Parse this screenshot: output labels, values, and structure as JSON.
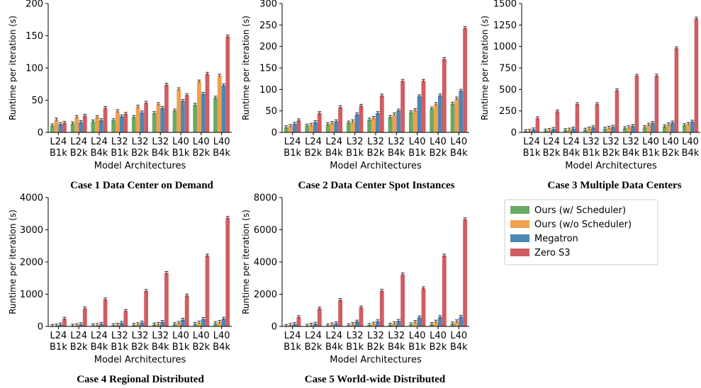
{
  "legend": {
    "placement": "right-of-bottom-row",
    "entries": [
      {
        "label": "Ours (w/ Scheduler)",
        "color": "#6aaa64"
      },
      {
        "label": "Ours (w/o Scheduler)",
        "color": "#f0a04c"
      },
      {
        "label": "Megatron",
        "color": "#4e86b5"
      },
      {
        "label": "Zero S3",
        "color": "#d05d63"
      }
    ]
  },
  "chart_data": [
    {
      "type": "bar",
      "caption": "Case 1 Data Center on Demand",
      "xlabel": "Model Architectures",
      "ylabel": "Runtime per iteration (s)",
      "categories": [
        "L24 B1k",
        "L24 B2k",
        "L24 B4k",
        "L32 B1k",
        "L32 B2k",
        "L32 B4k",
        "L40 B1k",
        "L40 B2k",
        "L40 B4k"
      ],
      "ylim": [
        0,
        200
      ],
      "yticks": [
        "0",
        "50",
        "100",
        "150",
        "200"
      ],
      "grid": false,
      "series": [
        {
          "name": "Ours (w/ Scheduler)",
          "values": [
            11,
            14,
            17,
            19,
            24,
            30,
            34,
            43,
            54
          ]
        },
        {
          "name": "Ours (w/o Scheduler)",
          "values": [
            20,
            24,
            24,
            33,
            40,
            44,
            67,
            79,
            88
          ]
        },
        {
          "name": "Megatron",
          "values": [
            13,
            16,
            19,
            25,
            31,
            38,
            49,
            60,
            73
          ]
        },
        {
          "name": "Zero S3",
          "values": [
            15,
            26,
            38,
            29,
            46,
            74,
            58,
            91,
            149
          ]
        }
      ]
    },
    {
      "type": "bar",
      "caption": "Case 2 Data Center Spot Instances",
      "xlabel": "Model Architectures",
      "ylabel": "Runtime per iteration (s)",
      "categories": [
        "L24 B1k",
        "L24 B2k",
        "L24 B4k",
        "L32 B1k",
        "L32 B2k",
        "L32 B4k",
        "L40 B1k",
        "L40 B2k",
        "L40 B4k"
      ],
      "ylim": [
        0,
        300
      ],
      "yticks": [
        "0",
        "50",
        "100",
        "150",
        "200",
        "250",
        "300"
      ],
      "grid": false,
      "series": [
        {
          "name": "Ours (w/ Scheduler)",
          "values": [
            12,
            16,
            19,
            23,
            30,
            36,
            47,
            56,
            67
          ]
        },
        {
          "name": "Ours (w/o Scheduler)",
          "values": [
            15,
            18,
            22,
            26,
            34,
            42,
            52,
            66,
            79
          ]
        },
        {
          "name": "Megatron",
          "values": [
            20,
            24,
            26,
            42,
            45,
            51,
            84,
            86,
            97
          ]
        },
        {
          "name": "Zero S3",
          "values": [
            28,
            45,
            59,
            62,
            86,
            120,
            120,
            171,
            243
          ]
        }
      ]
    },
    {
      "type": "bar",
      "caption": "Case 3 Multiple Data Centers",
      "xlabel": "Model Architectures",
      "ylabel": "Runtime per iteration (s)",
      "categories": [
        "L24 B1k",
        "L24 B2k",
        "L24 B4k",
        "L32 B1k",
        "L32 B2k",
        "L32 B4k",
        "L40 B1k",
        "L40 B2k",
        "L40 B4k"
      ],
      "ylim": [
        0,
        1500
      ],
      "yticks": [
        "0",
        "250",
        "500",
        "750",
        "1000",
        "1250",
        "1500"
      ],
      "grid": false,
      "series": [
        {
          "name": "Ours (w/ Scheduler)",
          "values": [
            15,
            22,
            27,
            32,
            43,
            50,
            62,
            72,
            84
          ]
        },
        {
          "name": "Ours (w/o Scheduler)",
          "values": [
            20,
            28,
            33,
            45,
            55,
            60,
            90,
            95,
            100
          ]
        },
        {
          "name": "Megatron",
          "values": [
            35,
            40,
            45,
            60,
            65,
            75,
            110,
            115,
            125
          ]
        },
        {
          "name": "Zero S3",
          "values": [
            165,
            245,
            330,
            330,
            490,
            660,
            660,
            980,
            1325
          ]
        }
      ]
    },
    {
      "type": "bar",
      "caption": "Case 4 Regional Distributed",
      "xlabel": "Model Architectures",
      "ylabel": "Runtime per iteration (s)",
      "categories": [
        "L24 B1k",
        "L24 B2k",
        "L24 B4k",
        "L32 B1k",
        "L32 B2k",
        "L32 B4k",
        "L40 B1k",
        "L40 B2k",
        "L40 B4k"
      ],
      "ylim": [
        0,
        4000
      ],
      "yticks": [
        "0",
        "1000",
        "2000",
        "3000",
        "4000"
      ],
      "grid": false,
      "series": [
        {
          "name": "Ours (w/ Scheduler)",
          "values": [
            15,
            25,
            35,
            40,
            50,
            60,
            70,
            80,
            100
          ]
        },
        {
          "name": "Ours (w/o Scheduler)",
          "values": [
            25,
            35,
            45,
            55,
            70,
            80,
            110,
            120,
            140
          ]
        },
        {
          "name": "Megatron",
          "values": [
            60,
            70,
            80,
            110,
            120,
            140,
            210,
            230,
            240
          ]
        },
        {
          "name": "Zero S3",
          "values": [
            240,
            560,
            840,
            480,
            1100,
            1660,
            960,
            2200,
            3370
          ]
        }
      ]
    },
    {
      "type": "bar",
      "caption": "Case 5 World-wide Distributed",
      "xlabel": "Model Architectures",
      "ylabel": "Runtime per iteration (s)",
      "categories": [
        "L24 B1k",
        "L24 B2k",
        "L24 B4k",
        "L32 B1k",
        "L32 B2k",
        "L32 B4k",
        "L40 B1k",
        "L40 B2k",
        "L40 B4k"
      ],
      "ylim": [
        0,
        8000
      ],
      "yticks": [
        "0",
        "2000",
        "4000",
        "6000",
        "8000"
      ],
      "grid": false,
      "series": [
        {
          "name": "Ours (w/ Scheduler)",
          "values": [
            30,
            45,
            60,
            70,
            90,
            110,
            130,
            150,
            180
          ]
        },
        {
          "name": "Ours (w/o Scheduler)",
          "values": [
            90,
            110,
            130,
            150,
            170,
            200,
            280,
            300,
            320
          ]
        },
        {
          "name": "Megatron",
          "values": [
            150,
            170,
            190,
            300,
            320,
            340,
            560,
            580,
            600
          ]
        },
        {
          "name": "Zero S3",
          "values": [
            580,
            1110,
            1640,
            1180,
            2210,
            3230,
            2370,
            4400,
            6650
          ]
        }
      ]
    }
  ]
}
